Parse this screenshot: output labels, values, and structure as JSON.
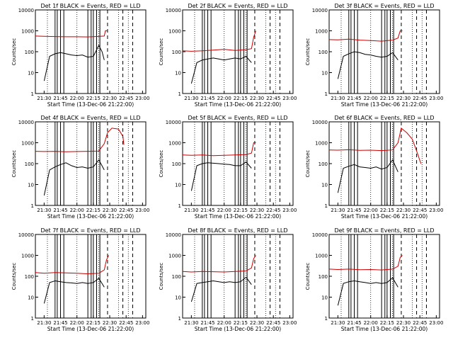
{
  "colors": {
    "events": "#000000",
    "lld": "#cc0000",
    "axes": "#000000",
    "background": "#ffffff"
  },
  "x_tick_labels": [
    "21:30",
    "21:45",
    "22:00",
    "22:15",
    "22:30",
    "22:45",
    "23:00"
  ],
  "x_axis_label": "Start Time (13-Dec-06 21:22:00)",
  "y_axis_label": "Counts/sec",
  "y_tick_labels": [
    "1",
    "10",
    "100",
    "1000",
    "10000"
  ],
  "chart_data": [
    {
      "type": "line",
      "title": "Det 1f BLACK = Events, RED = LLD",
      "xlabel": "Start Time (13-Dec-06 21:22:00)",
      "ylabel": "Counts/sec",
      "xlim": [
        "21:22",
        "23:03"
      ],
      "ylim": [
        1,
        10000
      ],
      "yscale": "log",
      "series": [
        {
          "name": "Events",
          "color": "#000000",
          "x": [
            "21:30",
            "21:35",
            "21:40",
            "21:45",
            "21:50",
            "21:55",
            "22:00",
            "22:05",
            "22:10",
            "22:15",
            "22:20",
            "22:23",
            "22:25"
          ],
          "y": [
            4,
            60,
            80,
            90,
            80,
            70,
            65,
            70,
            55,
            60,
            200,
            100,
            40
          ]
        },
        {
          "name": "LLD",
          "color": "#cc0000",
          "x": [
            "21:22",
            "21:30",
            "21:40",
            "21:50",
            "22:00",
            "22:10",
            "22:20",
            "22:25",
            "22:26",
            "22:28"
          ],
          "y": [
            560,
            550,
            530,
            520,
            520,
            510,
            540,
            560,
            1000,
            1000
          ]
        }
      ]
    },
    {
      "type": "line",
      "title": "Det 2f BLACK = Events, RED = LLD",
      "xlabel": "Start Time (13-Dec-06 21:22:00)",
      "ylabel": "Counts/sec",
      "xlim": [
        "21:22",
        "23:03"
      ],
      "ylim": [
        1,
        10000
      ],
      "yscale": "log",
      "series": [
        {
          "name": "Events",
          "color": "#000000",
          "x": [
            "21:30",
            "21:35",
            "21:40",
            "21:45",
            "21:50",
            "21:55",
            "22:00",
            "22:05",
            "22:10",
            "22:15",
            "22:20",
            "22:25"
          ],
          "y": [
            3,
            30,
            40,
            45,
            50,
            45,
            40,
            45,
            50,
            45,
            60,
            30
          ]
        },
        {
          "name": "LLD",
          "color": "#cc0000",
          "x": [
            "21:22",
            "21:30",
            "21:40",
            "21:50",
            "22:00",
            "22:10",
            "22:20",
            "22:25",
            "22:27",
            "22:29"
          ],
          "y": [
            110,
            105,
            110,
            120,
            130,
            115,
            125,
            140,
            500,
            1000
          ]
        }
      ]
    },
    {
      "type": "line",
      "title": "Det 3f BLACK = Events, RED = LLD",
      "xlabel": "Start Time (13-Dec-06 21:22:00)",
      "ylabel": "Counts/sec",
      "xlim": [
        "21:22",
        "23:03"
      ],
      "ylim": [
        1,
        10000
      ],
      "yscale": "log",
      "series": [
        {
          "name": "Events",
          "color": "#000000",
          "x": [
            "21:30",
            "21:35",
            "21:40",
            "21:45",
            "21:50",
            "21:55",
            "22:00",
            "22:05",
            "22:10",
            "22:15",
            "22:20",
            "22:25"
          ],
          "y": [
            5,
            60,
            80,
            100,
            90,
            75,
            70,
            60,
            55,
            60,
            90,
            40
          ]
        },
        {
          "name": "LLD",
          "color": "#cc0000",
          "x": [
            "21:22",
            "21:30",
            "21:40",
            "21:50",
            "22:00",
            "22:10",
            "22:20",
            "22:25",
            "22:27",
            "22:29"
          ],
          "y": [
            380,
            370,
            400,
            360,
            340,
            320,
            360,
            450,
            1000,
            1000
          ]
        }
      ]
    },
    {
      "type": "line",
      "title": "Det 4f BLACK = Events, RED = LLD",
      "xlabel": "Start Time (13-Dec-06 21:22:00)",
      "ylabel": "Counts/sec",
      "xlim": [
        "21:22",
        "23:03"
      ],
      "ylim": [
        1,
        10000
      ],
      "yscale": "log",
      "series": [
        {
          "name": "Events",
          "color": "#000000",
          "x": [
            "21:30",
            "21:35",
            "21:40",
            "21:45",
            "21:50",
            "21:55",
            "22:00",
            "22:05",
            "22:10",
            "22:15",
            "22:20",
            "22:25"
          ],
          "y": [
            3,
            50,
            70,
            90,
            110,
            80,
            65,
            70,
            60,
            70,
            150,
            50
          ]
        },
        {
          "name": "LLD",
          "color": "#cc0000",
          "x": [
            "21:22",
            "21:30",
            "21:40",
            "21:50",
            "22:00",
            "22:10",
            "22:20",
            "22:25",
            "22:28",
            "22:32",
            "22:38",
            "22:42",
            "22:43"
          ],
          "y": [
            390,
            380,
            390,
            370,
            380,
            390,
            400,
            900,
            3000,
            5000,
            4500,
            2000,
            800
          ]
        }
      ]
    },
    {
      "type": "line",
      "title": "Det 5f BLACK = Events, RED = LLD",
      "xlabel": "Start Time (13-Dec-06 21:22:00)",
      "ylabel": "Counts/sec",
      "xlim": [
        "21:22",
        "23:03"
      ],
      "ylim": [
        1,
        10000
      ],
      "yscale": "log",
      "series": [
        {
          "name": "Events",
          "color": "#000000",
          "x": [
            "21:30",
            "21:35",
            "21:40",
            "21:45",
            "21:50",
            "21:55",
            "22:00",
            "22:05",
            "22:10",
            "22:15",
            "22:20",
            "22:25"
          ],
          "y": [
            5,
            80,
            100,
            110,
            105,
            100,
            95,
            90,
            80,
            80,
            120,
            60
          ]
        },
        {
          "name": "LLD",
          "color": "#cc0000",
          "x": [
            "21:22",
            "21:30",
            "21:40",
            "21:50",
            "22:00",
            "22:10",
            "22:20",
            "22:25",
            "22:27",
            "22:29"
          ],
          "y": [
            260,
            250,
            260,
            240,
            250,
            260,
            270,
            320,
            1000,
            1000
          ]
        }
      ]
    },
    {
      "type": "line",
      "title": "Det 6f BLACK = Events, RED = LLD",
      "xlabel": "Start Time (13-Dec-06 21:22:00)",
      "ylabel": "Counts/sec",
      "xlim": [
        "21:22",
        "23:03"
      ],
      "ylim": [
        1,
        10000
      ],
      "yscale": "log",
      "series": [
        {
          "name": "Events",
          "color": "#000000",
          "x": [
            "21:30",
            "21:35",
            "21:40",
            "21:45",
            "21:50",
            "21:55",
            "22:00",
            "22:05",
            "22:10",
            "22:15",
            "22:20",
            "22:25"
          ],
          "y": [
            4,
            60,
            75,
            90,
            70,
            65,
            60,
            70,
            55,
            65,
            150,
            40
          ]
        },
        {
          "name": "LLD",
          "color": "#cc0000",
          "x": [
            "21:22",
            "21:30",
            "21:40",
            "21:50",
            "22:00",
            "22:10",
            "22:20",
            "22:25",
            "22:28",
            "22:33",
            "22:38",
            "22:42",
            "22:46"
          ],
          "y": [
            450,
            440,
            460,
            430,
            440,
            420,
            450,
            1000,
            5000,
            3000,
            1500,
            400,
            100
          ]
        }
      ]
    },
    {
      "type": "line",
      "title": "Det 7f BLACK = Events, RED = LLD",
      "xlabel": "Start Time (13-Dec-06 21:22:00)",
      "ylabel": "Counts/sec",
      "xlim": [
        "21:22",
        "23:03"
      ],
      "ylim": [
        1,
        10000
      ],
      "yscale": "log",
      "series": [
        {
          "name": "Events",
          "color": "#000000",
          "x": [
            "21:30",
            "21:35",
            "21:40",
            "21:45",
            "21:50",
            "21:55",
            "22:00",
            "22:05",
            "22:10",
            "22:15",
            "22:20",
            "22:25"
          ],
          "y": [
            5,
            50,
            60,
            55,
            50,
            48,
            45,
            50,
            45,
            50,
            80,
            30
          ]
        },
        {
          "name": "LLD",
          "color": "#cc0000",
          "x": [
            "21:22",
            "21:30",
            "21:40",
            "21:50",
            "22:00",
            "22:10",
            "22:20",
            "22:25",
            "22:27",
            "22:29"
          ],
          "y": [
            150,
            140,
            150,
            145,
            140,
            130,
            140,
            200,
            600,
            1000
          ]
        }
      ]
    },
    {
      "type": "line",
      "title": "Det 8f BLACK = Events, RED = LLD",
      "xlabel": "Start Time (13-Dec-06 21:22:00)",
      "ylabel": "Counts/sec",
      "xlim": [
        "21:22",
        "23:03"
      ],
      "ylim": [
        1,
        10000
      ],
      "yscale": "log",
      "series": [
        {
          "name": "Events",
          "color": "#000000",
          "x": [
            "21:30",
            "21:35",
            "21:40",
            "21:45",
            "21:50",
            "21:55",
            "22:00",
            "22:05",
            "22:10",
            "22:15",
            "22:20",
            "22:25"
          ],
          "y": [
            6,
            45,
            50,
            55,
            60,
            55,
            50,
            55,
            50,
            55,
            90,
            40
          ]
        },
        {
          "name": "LLD",
          "color": "#cc0000",
          "x": [
            "21:22",
            "21:30",
            "21:40",
            "21:50",
            "22:00",
            "22:10",
            "22:20",
            "22:25",
            "22:27",
            "22:29"
          ],
          "y": [
            170,
            160,
            170,
            165,
            160,
            170,
            180,
            250,
            700,
            1000
          ]
        }
      ]
    },
    {
      "type": "line",
      "title": "Det 9f BLACK = Events, RED = LLD",
      "xlabel": "Start Time (13-Dec-06 21:22:00)",
      "ylabel": "Counts/sec",
      "xlim": [
        "21:22",
        "23:03"
      ],
      "ylim": [
        1,
        10000
      ],
      "yscale": "log",
      "series": [
        {
          "name": "Events",
          "color": "#000000",
          "x": [
            "21:30",
            "21:35",
            "21:40",
            "21:45",
            "21:50",
            "21:55",
            "22:00",
            "22:05",
            "22:10",
            "22:15",
            "22:20",
            "22:25"
          ],
          "y": [
            4,
            45,
            55,
            60,
            55,
            50,
            45,
            50,
            45,
            50,
            85,
            30
          ]
        },
        {
          "name": "LLD",
          "color": "#cc0000",
          "x": [
            "21:22",
            "21:30",
            "21:40",
            "21:50",
            "22:00",
            "22:10",
            "22:20",
            "22:25",
            "22:27",
            "22:29"
          ],
          "y": [
            220,
            210,
            220,
            205,
            210,
            200,
            220,
            300,
            800,
            1000
          ]
        }
      ]
    }
  ]
}
